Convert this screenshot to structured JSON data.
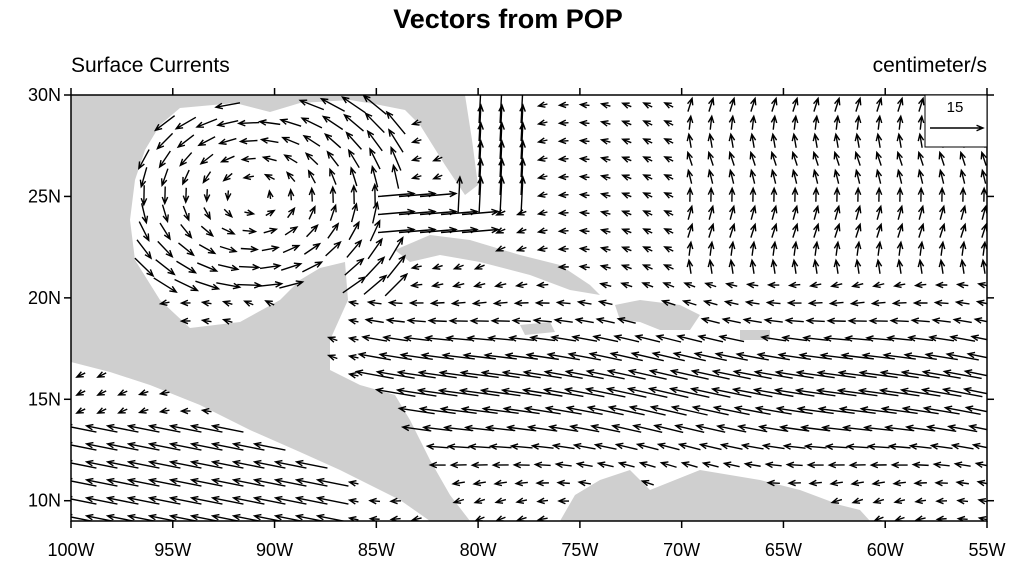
{
  "title": "Vectors from POP",
  "left_label": "Surface Currents",
  "right_label": "centimeter/s",
  "map": {
    "xlim": [
      -100,
      -55
    ],
    "ylim": [
      9,
      30
    ],
    "xticks": [
      {
        "value": -100,
        "label": "100W"
      },
      {
        "value": -95,
        "label": "95W"
      },
      {
        "value": -90,
        "label": "90W"
      },
      {
        "value": -85,
        "label": "85W"
      },
      {
        "value": -80,
        "label": "80W"
      },
      {
        "value": -75,
        "label": "75W"
      },
      {
        "value": -70,
        "label": "70W"
      },
      {
        "value": -65,
        "label": "65W"
      },
      {
        "value": -60,
        "label": "60W"
      },
      {
        "value": -55,
        "label": "55W"
      }
    ],
    "yticks": [
      {
        "value": 10,
        "label": "10N"
      },
      {
        "value": 15,
        "label": "15N"
      },
      {
        "value": 20,
        "label": "20N"
      },
      {
        "value": 25,
        "label": "25N"
      },
      {
        "value": 30,
        "label": "30N"
      }
    ],
    "reference_vector": {
      "magnitude": 15
    }
  }
}
